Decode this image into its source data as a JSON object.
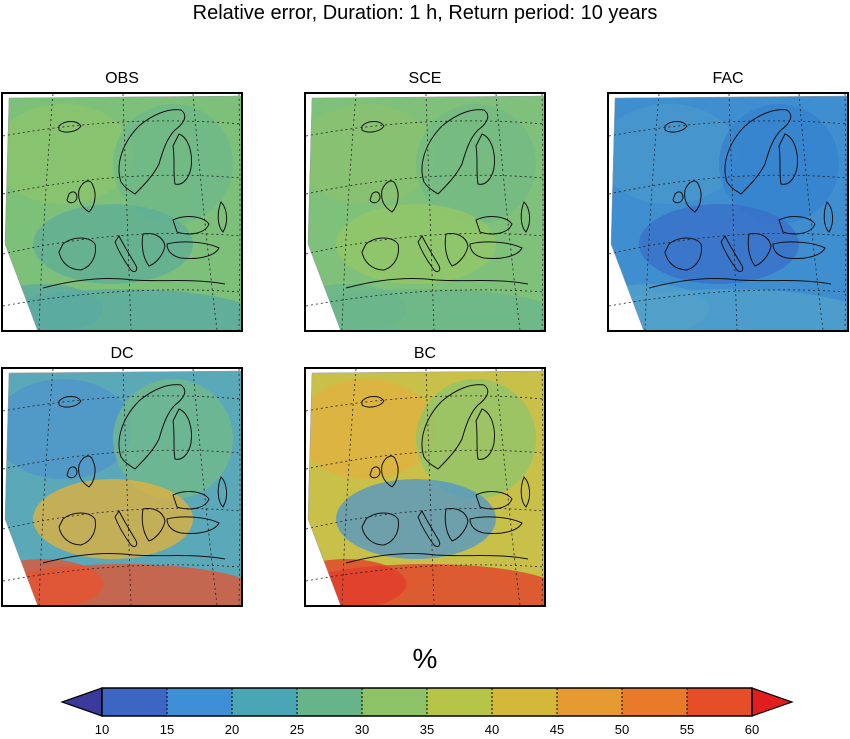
{
  "figure": {
    "title": "Relative error, Duration: 1 h, Return period: 10 years"
  },
  "panels": [
    {
      "id": "obs",
      "label": "OBS",
      "fill_colors": [
        "#7cc07a",
        "#8cc46e",
        "#6fb88a",
        "#5fae98",
        "#5aa9a4"
      ]
    },
    {
      "id": "sce",
      "label": "SCE",
      "fill_colors": [
        "#7fc07a",
        "#89c26f",
        "#73ba84",
        "#96c867",
        "#6ab58c"
      ]
    },
    {
      "id": "fac",
      "label": "FAC",
      "fill_colors": [
        "#3f8fd0",
        "#4a98cc",
        "#3580cf",
        "#3a6fc8",
        "#52a2c9"
      ]
    },
    {
      "id": "dc",
      "label": "DC",
      "fill_colors": [
        "#5aa8b8",
        "#4f96cc",
        "#74bb88",
        "#e8b23a",
        "#e8512e"
      ]
    },
    {
      "id": "bc",
      "label": "BC",
      "fill_colors": [
        "#c9c04a",
        "#e0b040",
        "#8cc46e",
        "#4f96cc",
        "#e23a2a"
      ]
    }
  ],
  "colorbar": {
    "unit": "%",
    "ticks": [
      "10",
      "15",
      "20",
      "25",
      "30",
      "35",
      "40",
      "45",
      "50",
      "55",
      "60"
    ],
    "min": 10,
    "max": 60,
    "step": 5,
    "under_color": "#3a3a9a",
    "over_color": "#e01e1e",
    "colors": [
      "#3d66c4",
      "#3f8fd6",
      "#4aa6b4",
      "#68b48a",
      "#8ec266",
      "#b6c448",
      "#d4b83a",
      "#e69a32",
      "#e87a2a",
      "#e54e26"
    ]
  }
}
